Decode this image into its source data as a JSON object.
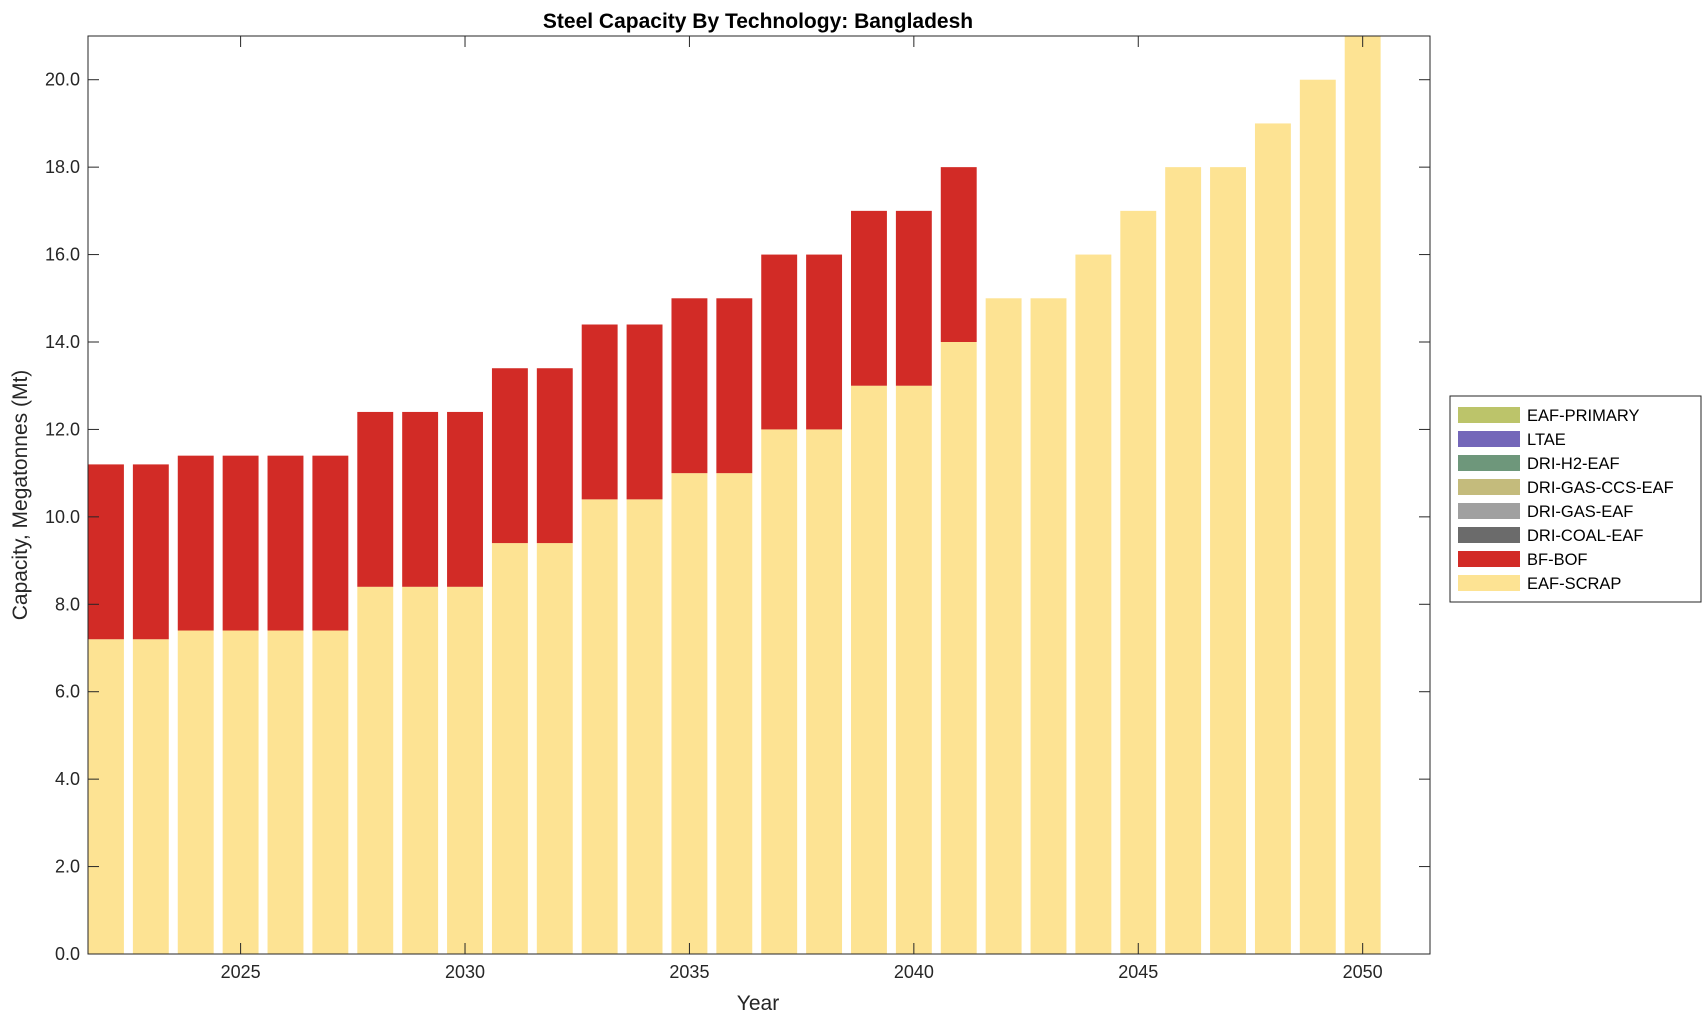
{
  "chart_data": {
    "type": "bar",
    "stacked": true,
    "title": "Steel Capacity By Technology: Bangladesh",
    "xlabel": "Year",
    "ylabel": "Capacity, Megatonnes (Mt)",
    "xlim": [
      2021.6,
      2051.5
    ],
    "ylim": [
      0,
      21
    ],
    "yticks": [
      0,
      2,
      4,
      6,
      8,
      10,
      12,
      14,
      16,
      18,
      20
    ],
    "ytick_labels": [
      "0.0",
      "2.0",
      "4.0",
      "6.0",
      "8.0",
      "10.0",
      "12.0",
      "14.0",
      "16.0",
      "18.0",
      "20.0"
    ],
    "xticks": [
      2025,
      2030,
      2035,
      2040,
      2045,
      2050
    ],
    "xtick_labels": [
      "2025",
      "2030",
      "2035",
      "2040",
      "2045",
      "2050"
    ],
    "grid": false,
    "legend_position": "right",
    "categories": [
      2022,
      2023,
      2024,
      2025,
      2026,
      2027,
      2028,
      2029,
      2030,
      2031,
      2032,
      2033,
      2034,
      2035,
      2036,
      2037,
      2038,
      2039,
      2040,
      2041,
      2042,
      2043,
      2044,
      2045,
      2046,
      2047,
      2048,
      2049,
      2050
    ],
    "series": [
      {
        "name": "EAF-SCRAP",
        "color": "#fde393",
        "values": [
          7.2,
          7.2,
          7.4,
          7.4,
          7.4,
          7.4,
          8.4,
          8.4,
          8.4,
          9.4,
          9.4,
          10.4,
          10.4,
          11,
          11,
          12,
          12,
          13,
          13,
          14,
          15,
          15,
          16,
          17,
          18,
          18,
          19,
          20,
          21
        ]
      },
      {
        "name": "BF-BOF",
        "color": "#d22b26",
        "values": [
          4,
          4,
          4,
          4,
          4,
          4,
          4,
          4,
          4,
          4,
          4,
          4,
          4,
          4,
          4,
          4,
          4,
          4,
          4,
          4,
          0,
          0,
          0,
          0,
          0,
          0,
          0,
          0,
          0
        ]
      },
      {
        "name": "DRI-COAL-EAF",
        "color": "#6b6b6b",
        "values": [
          0,
          0,
          0,
          0,
          0,
          0,
          0,
          0,
          0,
          0,
          0,
          0,
          0,
          0,
          0,
          0,
          0,
          0,
          0,
          0,
          0,
          0,
          0,
          0,
          0,
          0,
          0,
          0,
          0
        ]
      },
      {
        "name": "DRI-GAS-EAF",
        "color": "#a0a0a0",
        "values": [
          0,
          0,
          0,
          0,
          0,
          0,
          0,
          0,
          0,
          0,
          0,
          0,
          0,
          0,
          0,
          0,
          0,
          0,
          0,
          0,
          0,
          0,
          0,
          0,
          0,
          0,
          0,
          0,
          0
        ]
      },
      {
        "name": "DRI-GAS-CCS-EAF",
        "color": "#c4bb7c",
        "values": [
          0,
          0,
          0,
          0,
          0,
          0,
          0,
          0,
          0,
          0,
          0,
          0,
          0,
          0,
          0,
          0,
          0,
          0,
          0,
          0,
          0,
          0,
          0,
          0,
          0,
          0,
          0,
          0,
          0
        ]
      },
      {
        "name": "DRI-H2-EAF",
        "color": "#6e977b",
        "values": [
          0,
          0,
          0,
          0,
          0,
          0,
          0,
          0,
          0,
          0,
          0,
          0,
          0,
          0,
          0,
          0,
          0,
          0,
          0,
          0,
          0,
          0,
          0,
          0,
          0,
          0,
          0,
          0,
          0
        ]
      },
      {
        "name": "LTAE",
        "color": "#7467b9",
        "values": [
          0,
          0,
          0,
          0,
          0,
          0,
          0,
          0,
          0,
          0,
          0,
          0,
          0,
          0,
          0,
          0,
          0,
          0,
          0,
          0,
          0,
          0,
          0,
          0,
          0,
          0,
          0,
          0,
          0
        ]
      },
      {
        "name": "EAF-PRIMARY",
        "color": "#bcc46a",
        "values": [
          0,
          0,
          0,
          0,
          0,
          0,
          0,
          0,
          0,
          0,
          0,
          0,
          0,
          0,
          0,
          0,
          0,
          0,
          0,
          0,
          0,
          0,
          0,
          0,
          0,
          0,
          0,
          0,
          0
        ]
      }
    ],
    "legend_order": [
      "EAF-PRIMARY",
      "LTAE",
      "DRI-H2-EAF",
      "DRI-GAS-CCS-EAF",
      "DRI-GAS-EAF",
      "DRI-COAL-EAF",
      "BF-BOF",
      "EAF-SCRAP"
    ]
  }
}
